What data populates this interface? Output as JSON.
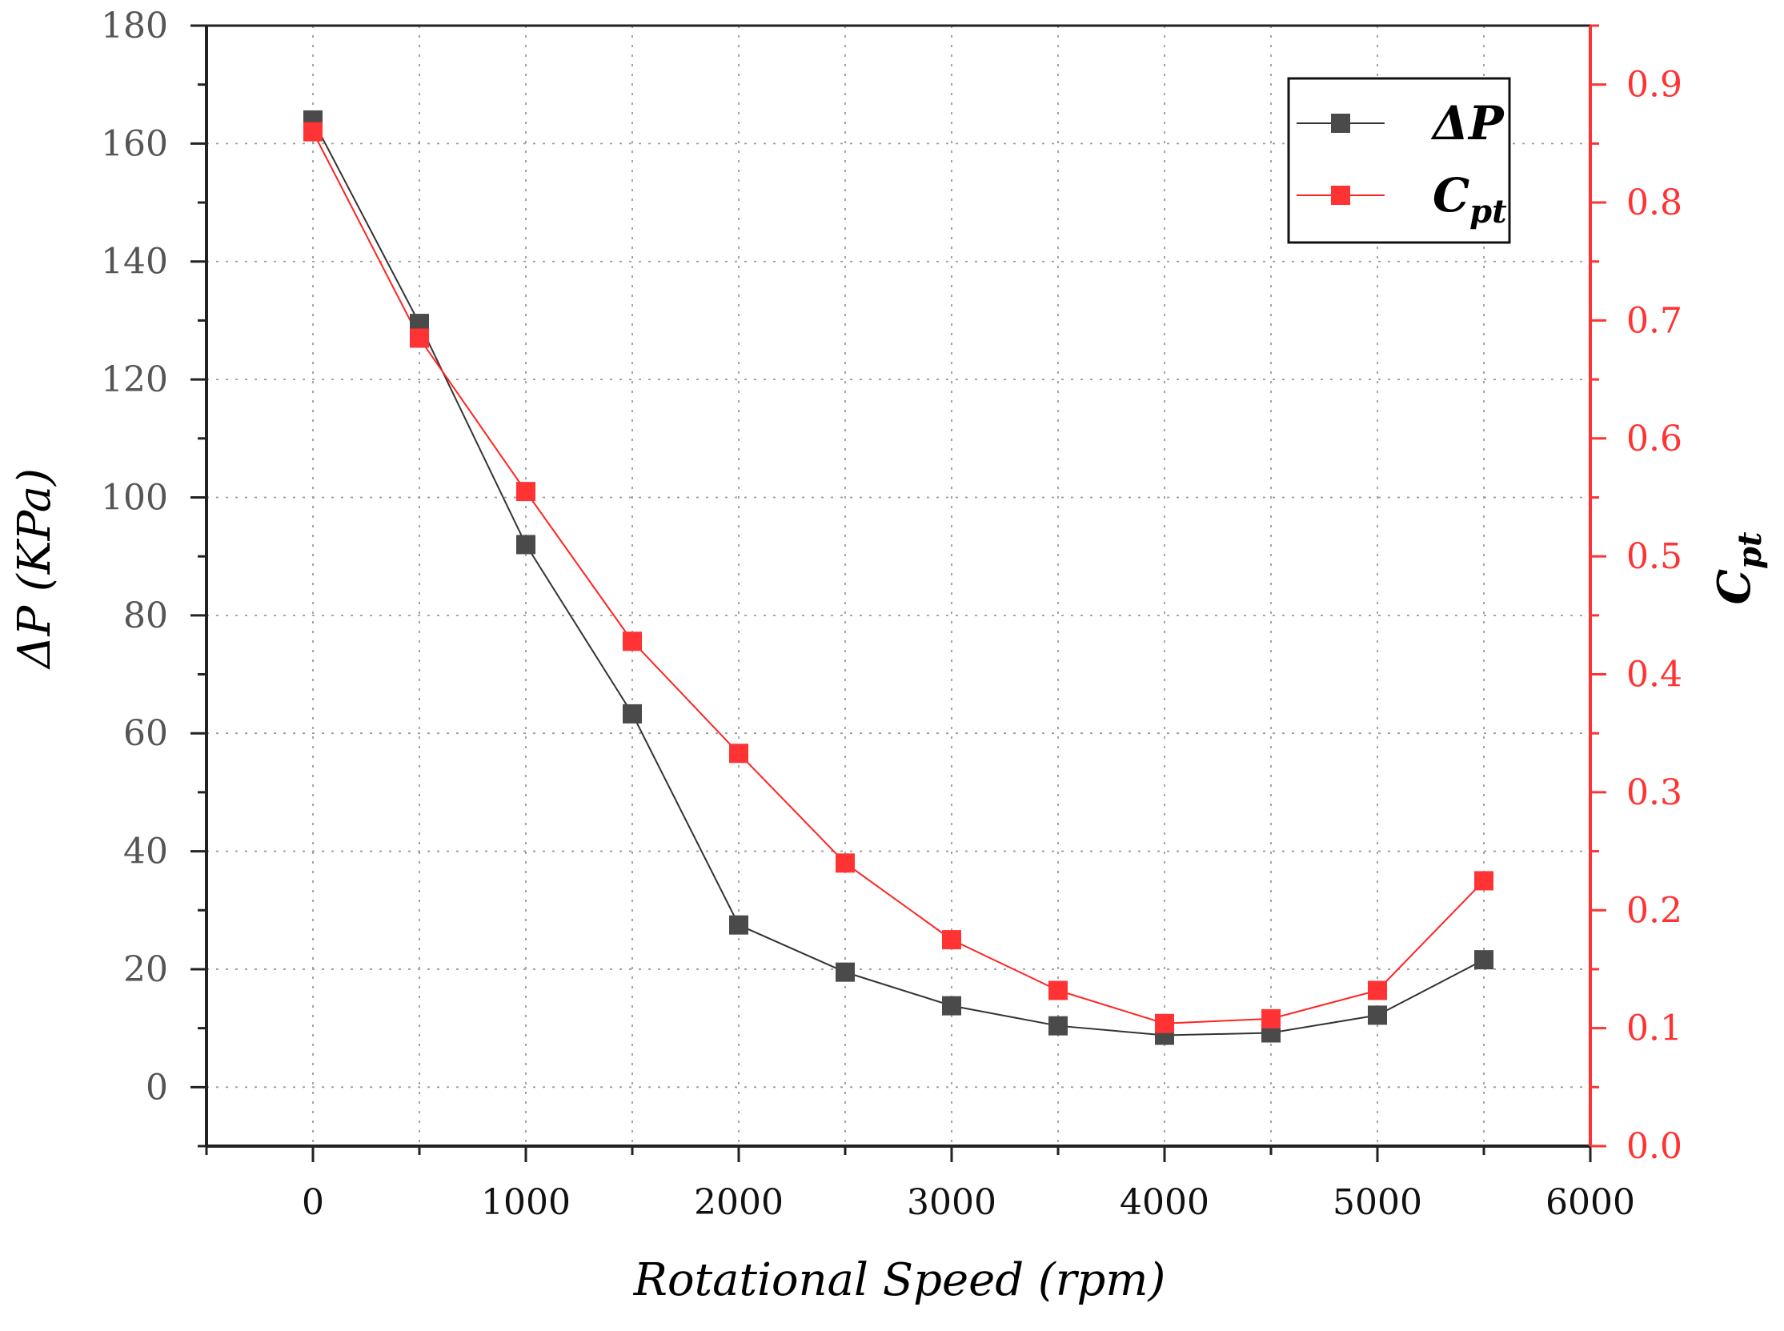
{
  "chart_data": {
    "type": "line",
    "x": [
      0,
      500,
      1000,
      1500,
      2000,
      2500,
      3000,
      3500,
      4000,
      4500,
      5000,
      5500
    ],
    "series": [
      {
        "name": "ΔP",
        "axis": "left",
        "color": "#4a4a4a",
        "line_color": "#333333",
        "marker": "square",
        "values": [
          164,
          129.5,
          92,
          63.3,
          27.5,
          19.5,
          13.8,
          10.4,
          8.8,
          9.2,
          12.2,
          21.6
        ]
      },
      {
        "name": "Cpt",
        "axis": "right",
        "color": "#ff3333",
        "line_color": "#ff2222",
        "marker": "square",
        "values": [
          0.86,
          0.685,
          0.555,
          0.428,
          0.333,
          0.24,
          0.175,
          0.132,
          0.104,
          0.108,
          0.132,
          0.225
        ]
      }
    ],
    "xlabel": "Rotational Speed (rpm)",
    "ylabel": "ΔP (KPa)",
    "y2label": "Cpt",
    "xlim": [
      -500,
      6000
    ],
    "ylim": [
      -10,
      180
    ],
    "y2lim": [
      0.0,
      0.95
    ],
    "x_ticks": [
      "0",
      "1000",
      "2000",
      "3000",
      "4000",
      "5000",
      "6000"
    ],
    "y_ticks": [
      "0",
      "20",
      "40",
      "60",
      "80",
      "100",
      "120",
      "140",
      "160",
      "180"
    ],
    "y2_ticks": [
      "0.0",
      "0.1",
      "0.2",
      "0.3",
      "0.4",
      "0.5",
      "0.6",
      "0.7",
      "0.8",
      "0.9"
    ],
    "legend": {
      "position": "top-right",
      "entries": [
        {
          "main": "ΔP",
          "sub": ""
        },
        {
          "main": "C",
          "sub": "pt"
        }
      ]
    },
    "grid": true
  }
}
